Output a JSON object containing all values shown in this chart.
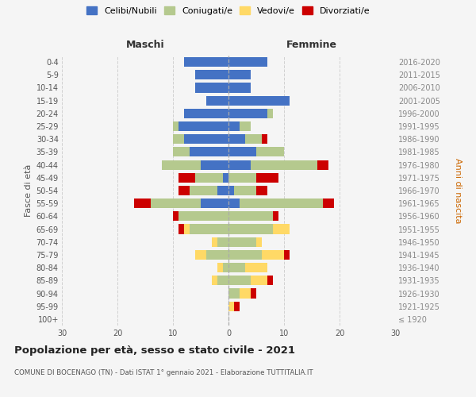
{
  "age_groups": [
    "100+",
    "95-99",
    "90-94",
    "85-89",
    "80-84",
    "75-79",
    "70-74",
    "65-69",
    "60-64",
    "55-59",
    "50-54",
    "45-49",
    "40-44",
    "35-39",
    "30-34",
    "25-29",
    "20-24",
    "15-19",
    "10-14",
    "5-9",
    "0-4"
  ],
  "birth_years": [
    "≤ 1920",
    "1921-1925",
    "1926-1930",
    "1931-1935",
    "1936-1940",
    "1941-1945",
    "1946-1950",
    "1951-1955",
    "1956-1960",
    "1961-1965",
    "1966-1970",
    "1971-1975",
    "1976-1980",
    "1981-1985",
    "1986-1990",
    "1991-1995",
    "1996-2000",
    "2001-2005",
    "2006-2010",
    "2011-2015",
    "2016-2020"
  ],
  "maschi": {
    "celibi": [
      0,
      0,
      0,
      0,
      0,
      0,
      0,
      0,
      0,
      5,
      2,
      1,
      5,
      7,
      8,
      9,
      8,
      4,
      6,
      6,
      8
    ],
    "coniugati": [
      0,
      0,
      0,
      2,
      1,
      4,
      2,
      7,
      9,
      9,
      5,
      5,
      7,
      3,
      2,
      1,
      0,
      0,
      0,
      0,
      0
    ],
    "vedovi": [
      0,
      0,
      0,
      1,
      1,
      2,
      1,
      1,
      0,
      0,
      0,
      0,
      0,
      0,
      0,
      0,
      0,
      0,
      0,
      0,
      0
    ],
    "divorziati": [
      0,
      0,
      0,
      0,
      0,
      0,
      0,
      1,
      1,
      3,
      2,
      3,
      0,
      0,
      0,
      0,
      0,
      0,
      0,
      0,
      0
    ]
  },
  "femmine": {
    "nubili": [
      0,
      0,
      0,
      0,
      0,
      0,
      0,
      0,
      0,
      2,
      1,
      0,
      4,
      5,
      3,
      2,
      7,
      11,
      4,
      4,
      7
    ],
    "coniugate": [
      0,
      0,
      2,
      4,
      3,
      6,
      5,
      8,
      8,
      15,
      4,
      5,
      12,
      5,
      3,
      2,
      1,
      0,
      0,
      0,
      0
    ],
    "vedove": [
      0,
      1,
      2,
      3,
      4,
      4,
      1,
      3,
      0,
      0,
      0,
      0,
      0,
      0,
      0,
      0,
      0,
      0,
      0,
      0,
      0
    ],
    "divorziate": [
      0,
      1,
      1,
      1,
      0,
      1,
      0,
      0,
      1,
      2,
      2,
      4,
      2,
      0,
      1,
      0,
      0,
      0,
      0,
      0,
      0
    ]
  },
  "colors": {
    "celibi_nubili": "#4472C4",
    "coniugati": "#B5C98E",
    "vedovi": "#FFD966",
    "divorziati": "#CC0000"
  },
  "title": "Popolazione per età, sesso e stato civile - 2021",
  "subtitle": "COMUNE DI BOCENAGO (TN) - Dati ISTAT 1° gennaio 2021 - Elaborazione TUTTITALIA.IT",
  "xlabel_left": "Maschi",
  "xlabel_right": "Femmine",
  "ylabel_left": "Fasce di età",
  "ylabel_right": "Anni di nascita",
  "xlim": 30,
  "legend_labels": [
    "Celibi/Nubili",
    "Coniugati/e",
    "Vedovi/e",
    "Divorziati/e"
  ],
  "bg_color": "#f5f5f5"
}
